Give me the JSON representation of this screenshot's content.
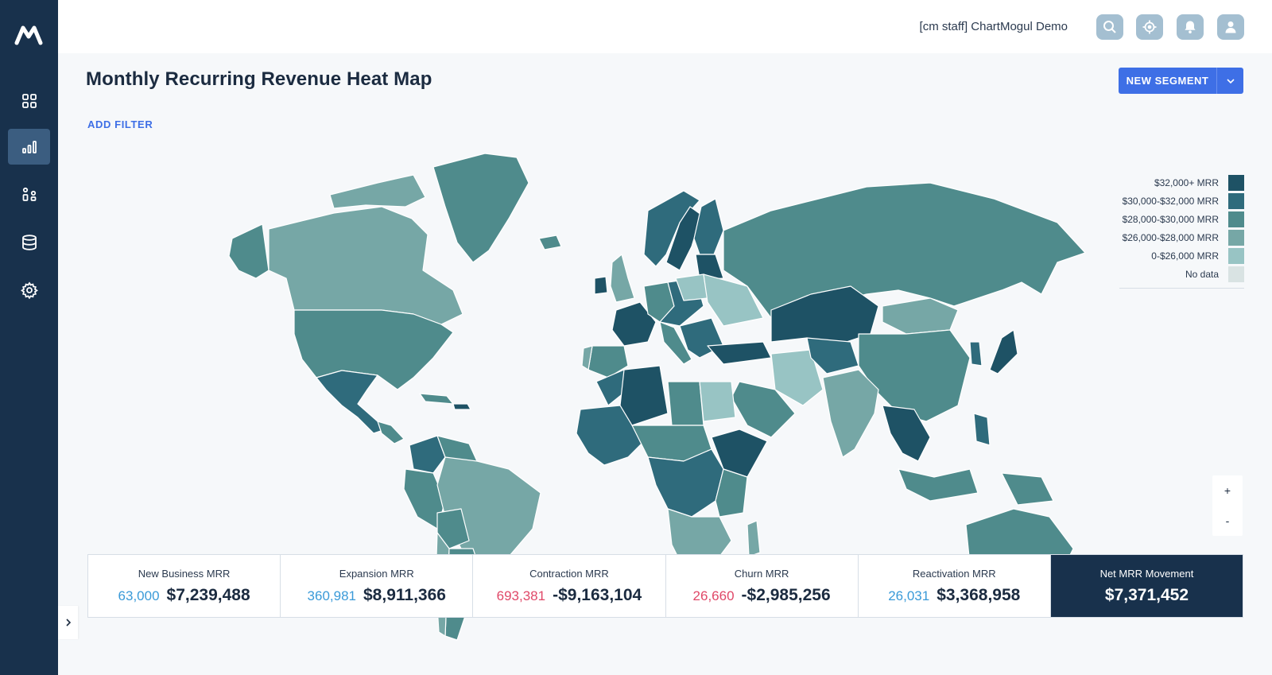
{
  "app": {
    "account_name": "[cm staff] ChartMogul Demo"
  },
  "sidebar": {
    "items": [
      {
        "name": "dashboard",
        "icon": "grid-icon"
      },
      {
        "name": "reports",
        "icon": "bar-chart-icon",
        "active": true
      },
      {
        "name": "customers",
        "icon": "people-icon"
      },
      {
        "name": "data",
        "icon": "database-icon"
      },
      {
        "name": "settings",
        "icon": "gear-icon"
      }
    ]
  },
  "header": {
    "title": "Monthly Recurring Revenue Heat Map",
    "new_segment_label": "NEW SEGMENT",
    "add_filter_label": "ADD FILTER"
  },
  "legend": {
    "items": [
      {
        "label": "$32,000+ MRR",
        "color": "#1e5265"
      },
      {
        "label": "$30,000-$32,000 MRR",
        "color": "#2f6b7c"
      },
      {
        "label": "$28,000-$30,000 MRR",
        "color": "#4f8b8c"
      },
      {
        "label": "$26,000-$28,000 MRR",
        "color": "#76a7a6"
      },
      {
        "label": "0-$26,000 MRR",
        "color": "#98c4c4"
      },
      {
        "label": "No data",
        "color": "#d9e3e3"
      }
    ]
  },
  "zoom": {
    "in_label": "+",
    "out_label": "-"
  },
  "stats": [
    {
      "title": "New Business MRR",
      "count": "63,000",
      "amount": "$7,239,488",
      "tone": "pos"
    },
    {
      "title": "Expansion MRR",
      "count": "360,981",
      "amount": "$8,911,366",
      "tone": "pos"
    },
    {
      "title": "Contraction MRR",
      "count": "693,381",
      "amount": "-$9,163,104",
      "tone": "neg"
    },
    {
      "title": "Churn MRR",
      "count": "26,660",
      "amount": "-$2,985,256",
      "tone": "neg"
    },
    {
      "title": "Reactivation MRR",
      "count": "26,031",
      "amount": "$3,368,958",
      "tone": "pos"
    },
    {
      "title": "Net MRR Movement",
      "count": "",
      "amount": "$7,371,452",
      "tone": "net"
    }
  ]
}
